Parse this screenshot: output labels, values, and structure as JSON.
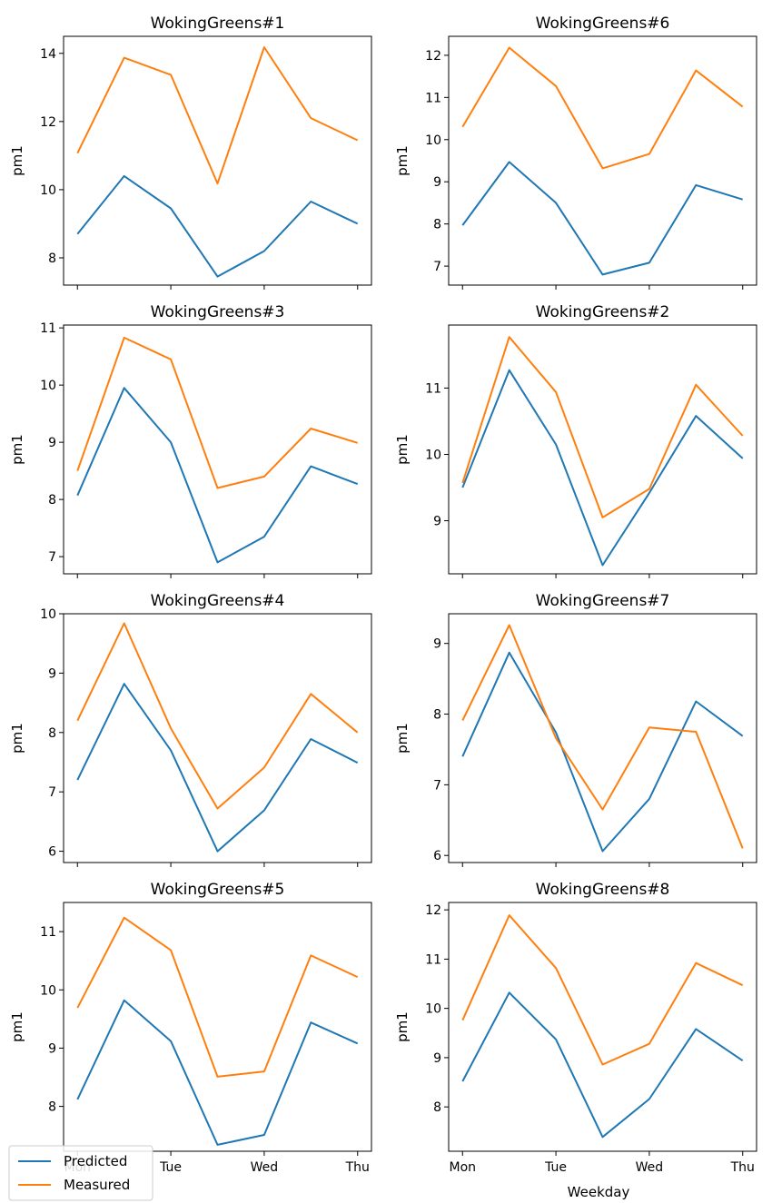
{
  "figure": {
    "shared_xlabel": "Weekday",
    "legend": [
      {
        "name": "Predicted",
        "color": "#1f77b4"
      },
      {
        "name": "Measured",
        "color": "#ff7f0e"
      }
    ],
    "legend_placement": "lower-left"
  },
  "chart_data": [
    {
      "type": "line",
      "title": "WokingGreens#1",
      "ylabel": "pm1",
      "xlabel": "",
      "x": [
        0,
        1,
        2,
        3,
        4,
        5,
        6
      ],
      "xticks": [],
      "yticks": [
        8,
        10,
        12,
        14
      ],
      "ylim": [
        7.2,
        14.5
      ],
      "series": [
        {
          "name": "Predicted",
          "color": "#1f77b4",
          "values": [
            8.7,
            10.4,
            9.45,
            7.45,
            8.2,
            9.65,
            9.0
          ]
        },
        {
          "name": "Measured",
          "color": "#ff7f0e",
          "values": [
            11.07,
            13.87,
            13.37,
            10.18,
            14.18,
            12.1,
            11.45
          ]
        }
      ]
    },
    {
      "type": "line",
      "title": "WokingGreens#6",
      "ylabel": "pm1",
      "xlabel": "",
      "x": [
        0,
        1,
        2,
        3,
        4,
        5,
        6
      ],
      "xticks": [],
      "yticks": [
        7,
        8,
        9,
        10,
        11,
        12
      ],
      "ylim": [
        6.55,
        12.45
      ],
      "series": [
        {
          "name": "Predicted",
          "color": "#1f77b4",
          "values": [
            7.97,
            9.47,
            8.5,
            6.8,
            7.08,
            8.92,
            8.58
          ]
        },
        {
          "name": "Measured",
          "color": "#ff7f0e",
          "values": [
            10.3,
            12.18,
            11.27,
            9.32,
            9.66,
            11.64,
            10.78
          ]
        }
      ]
    },
    {
      "type": "line",
      "title": "WokingGreens#3",
      "ylabel": "pm1",
      "xlabel": "",
      "x": [
        0,
        1,
        2,
        3,
        4,
        5,
        6
      ],
      "xticks": [],
      "yticks": [
        7,
        8,
        9,
        10,
        11
      ],
      "ylim": [
        6.7,
        11.05
      ],
      "series": [
        {
          "name": "Predicted",
          "color": "#1f77b4",
          "values": [
            8.07,
            9.95,
            9.0,
            6.9,
            7.35,
            8.58,
            8.27
          ]
        },
        {
          "name": "Measured",
          "color": "#ff7f0e",
          "values": [
            8.5,
            10.83,
            10.45,
            8.2,
            8.4,
            9.24,
            8.99
          ]
        }
      ]
    },
    {
      "type": "line",
      "title": "WokingGreens#2",
      "ylabel": "pm1",
      "xlabel": "",
      "x": [
        0,
        1,
        2,
        3,
        4,
        5,
        6
      ],
      "xticks": [],
      "yticks": [
        9,
        10,
        11
      ],
      "ylim": [
        8.2,
        11.95
      ],
      "series": [
        {
          "name": "Predicted",
          "color": "#1f77b4",
          "values": [
            9.5,
            11.27,
            10.15,
            8.33,
            9.42,
            10.58,
            9.94
          ]
        },
        {
          "name": "Measured",
          "color": "#ff7f0e",
          "values": [
            9.57,
            11.77,
            10.94,
            9.05,
            9.48,
            11.05,
            10.28
          ]
        }
      ]
    },
    {
      "type": "line",
      "title": "WokingGreens#4",
      "ylabel": "pm1",
      "xlabel": "",
      "x": [
        0,
        1,
        2,
        3,
        4,
        5,
        6
      ],
      "xticks": [],
      "yticks": [
        6,
        7,
        8,
        9,
        10
      ],
      "ylim": [
        5.81,
        10.0
      ],
      "series": [
        {
          "name": "Predicted",
          "color": "#1f77b4",
          "values": [
            7.2,
            8.82,
            7.7,
            6.0,
            6.69,
            7.89,
            7.49
          ]
        },
        {
          "name": "Measured",
          "color": "#ff7f0e",
          "values": [
            8.2,
            9.84,
            8.07,
            6.72,
            7.41,
            8.65,
            8.0
          ]
        }
      ]
    },
    {
      "type": "line",
      "title": "WokingGreens#7",
      "ylabel": "pm1",
      "xlabel": "",
      "x": [
        0,
        1,
        2,
        3,
        4,
        5,
        6
      ],
      "xticks": [],
      "yticks": [
        6,
        7,
        8,
        9
      ],
      "ylim": [
        5.9,
        9.42
      ],
      "series": [
        {
          "name": "Predicted",
          "color": "#1f77b4",
          "values": [
            7.4,
            8.87,
            7.74,
            6.06,
            6.8,
            8.18,
            7.69
          ]
        },
        {
          "name": "Measured",
          "color": "#ff7f0e",
          "values": [
            7.91,
            9.26,
            7.66,
            6.65,
            7.81,
            7.75,
            6.1
          ]
        }
      ]
    },
    {
      "type": "line",
      "title": "WokingGreens#5",
      "ylabel": "pm1",
      "xlabel": "",
      "x": [
        0,
        1,
        2,
        3,
        4,
        5,
        6
      ],
      "xticks": [
        "Mon",
        "Tue",
        "Wed",
        "Thu"
      ],
      "xtick_positions": [
        0,
        2,
        4,
        6
      ],
      "yticks": [
        8,
        9,
        10,
        11
      ],
      "ylim": [
        7.23,
        11.5
      ],
      "series": [
        {
          "name": "Predicted",
          "color": "#1f77b4",
          "values": [
            8.12,
            9.82,
            9.12,
            7.34,
            7.51,
            9.44,
            9.08
          ]
        },
        {
          "name": "Measured",
          "color": "#ff7f0e",
          "values": [
            9.69,
            11.24,
            10.68,
            8.51,
            8.6,
            10.59,
            10.22
          ]
        }
      ]
    },
    {
      "type": "line",
      "title": "WokingGreens#8",
      "ylabel": "pm1",
      "xlabel": "Weekday",
      "x": [
        0,
        1,
        2,
        3,
        4,
        5,
        6
      ],
      "xticks": [
        "Mon",
        "Tue",
        "Wed",
        "Thu"
      ],
      "xtick_positions": [
        0,
        2,
        4,
        6
      ],
      "yticks": [
        8,
        9,
        10,
        11,
        12
      ],
      "ylim": [
        7.1,
        12.15
      ],
      "series": [
        {
          "name": "Predicted",
          "color": "#1f77b4",
          "values": [
            8.52,
            10.32,
            9.37,
            7.39,
            8.16,
            9.58,
            8.94
          ]
        },
        {
          "name": "Measured",
          "color": "#ff7f0e",
          "values": [
            9.76,
            11.89,
            10.82,
            8.86,
            9.28,
            10.92,
            10.47
          ]
        }
      ]
    }
  ]
}
